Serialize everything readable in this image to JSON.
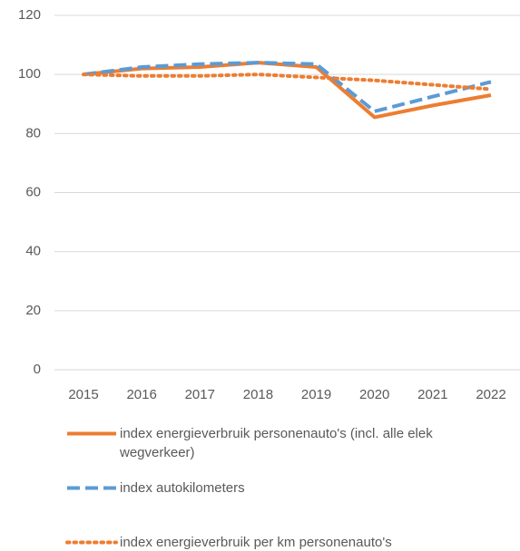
{
  "chart_data": {
    "type": "line",
    "categories": [
      "2015",
      "2016",
      "2017",
      "2018",
      "2019",
      "2020",
      "2021",
      "2022"
    ],
    "series": [
      {
        "name": "index energieverbruik personenauto's (incl. alle elek wegverkeer)",
        "color": "#ED7D31",
        "dash": "solid",
        "values": [
          100,
          102,
          102.5,
          104,
          102.5,
          85.5,
          89.5,
          93
        ]
      },
      {
        "name": "index autokilometers",
        "color": "#5B9BD5",
        "dash": "dashed",
        "values": [
          100,
          102.5,
          103.5,
          104,
          103.5,
          87.5,
          92.5,
          97.5
        ]
      },
      {
        "name": "index energieverbruik per km personenauto's",
        "color": "#ED7D31",
        "dash": "dotted",
        "values": [
          100,
          99.5,
          99.5,
          100,
          99,
          98,
          96.5,
          95
        ]
      }
    ],
    "ylim": [
      0,
      120
    ],
    "yticks": [
      0,
      20,
      40,
      60,
      80,
      100,
      120
    ],
    "grid": true
  }
}
